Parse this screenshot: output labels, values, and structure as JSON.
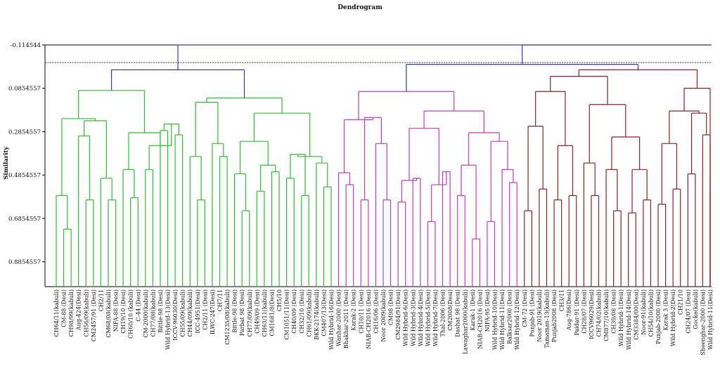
{
  "chart_data": {
    "type": "dendrogram",
    "title": "Dendrogram",
    "ylabel": "Similarity",
    "ylim": [
      -0.114544,
      1.0
    ],
    "yticks": [
      "-0.114544",
      "0.0854557",
      "0.2854557",
      "0.4854557",
      "0.6854557",
      "0.8854557"
    ],
    "cut_line_similarity": -0.05,
    "colors": {
      "root": "#3a3ab4",
      "cluster1": "#33bb33",
      "cluster2": "#c23cc2",
      "cluster3": "#8b2222",
      "cut_line": "#333333"
    },
    "leaves": [
      "CH64/11(kabuli)",
      "CM-88 (Desi)",
      "CH98/99(kabuli)",
      "Aug-424(Desi)",
      "CH56/09(kabuli)",
      "CM2457/91 (Desi)",
      "CH2/11",
      "CM68/08(kabuli)",
      "NIFA-88 (Desi)",
      "CH19/10 (Desi)",
      "CH60/10 (kabuli)",
      "C-44 (Desi)",
      "CM-2000(kabuli)",
      "CH77/08(kabuli)",
      "Bittle-98 (Desi)",
      "Wild Hybrid-13(Desi)",
      "ICCV-96030(Desi)",
      "CH55/09(kabuli)",
      "CH44/09(kabuli)",
      "ICC-4951(Desi)",
      "CH2/11 (Desi)",
      "ILWC-247(Desi)",
      "CH7/11",
      "CM1235/08(kabuli)",
      "Bittle-98 (Desi)",
      "Parbat 98 (Desi)",
      "CH77/09(kabuli)",
      "CH49/09 (Desi)",
      "CH63/11(kabuli)",
      "CM1681/8(Desi)",
      "CH5/10",
      "CM1051/11(Desi)",
      "CH40/09 (Desi)",
      "CH32/10 (Desi)",
      "CH61/09(kabuli)",
      "BKK-2174(kabuli)",
      "CM407/13(Desi)",
      "Wild Hybrid-16(Desi)",
      "Wanhar-2000 (Desi)",
      "Bhakhar-2011 (Desi)",
      "Karak-2 (Desi)",
      "CH10/11 (Desi)",
      "NIAB-CH2016 (Desi)",
      "CH16/06 (Desi)",
      "Noor 2009(kabuli)",
      "CM98 (Desi)",
      "CM2984/91(Desi)",
      "Wild Hybrid-6(Desi)",
      "Wild Hybrid-3(Desi)",
      "Wild Hybrid-4(Desi)",
      "Wild Hybrid-5(Desi)",
      "Wild Hybrid-7(Desi)",
      "Thal-2006 (Desi)",
      "CM2008(Desi)",
      "Dashat 98 (Desi)",
      "Lawaghar2000(kabuli)",
      "Karak-1 (Desi)",
      "NIAB-CH2016 (Desi)",
      "NIFA-95 (Desi)",
      "Wild Hybrid-10(Desi)",
      "Wild Hybrid-11(Desi)",
      "Balksar2000 (Desi)",
      "Wild Hybrid-12(Desi)",
      "CM-72 (Desi)",
      "Punjab-91 (Desi)",
      "Noor 2019(kabuli)",
      "Tamaman-13(kabuli)",
      "Punjab2008 (Desi)",
      "CH3/11",
      "Aug-786(Desi)",
      "Paidar-91 (Desi)",
      "CH28/07 (Desi)",
      "ICCV96029(Desi)",
      "CH74/02(kabuli)",
      "CM877/10(kabuli)",
      "CH39/08 (Desi)",
      "Wild Hybrid-1(Desi)",
      "Wild Hybrid-14(Desi)",
      "CM3384/00(Desi)",
      "Noor-91(kabuli)",
      "CH54/10(kabuli)",
      "Punjab-2000 (Desi)",
      "Karak 3 (Desi)",
      "Wild Hybrid-2(Desi)",
      "CH21/10",
      "CH24/07 (Desi)",
      "Gocke(kabuli)",
      "Sheenghar-2000 (Desi)",
      "Wild Hybrid-11(Desi)"
    ]
  }
}
